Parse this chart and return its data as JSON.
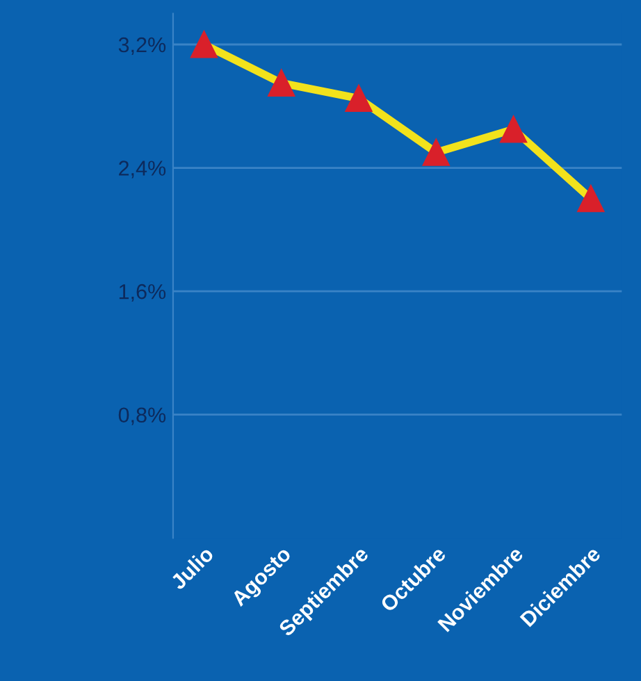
{
  "chart_data": {
    "type": "line",
    "categories": [
      "Julio",
      "Agosto",
      "Septiembre",
      "Octubre",
      "Noviembre",
      "Diciembre"
    ],
    "series": [
      {
        "color": "#f2e21c",
        "values": [
          3.2,
          2.95,
          2.85,
          2.5,
          2.65,
          2.2
        ]
      }
    ],
    "ylim": [
      0,
      3.4
    ],
    "yticks": [
      {
        "value": 0.8,
        "label": "0,8%"
      },
      {
        "value": 1.6,
        "label": "1,6%"
      },
      {
        "value": 2.4,
        "label": "2,4%"
      },
      {
        "value": 3.2,
        "label": "3,2%"
      }
    ],
    "grid": "y",
    "marker": "triangle",
    "line_style": "solid",
    "legend": false
  }
}
